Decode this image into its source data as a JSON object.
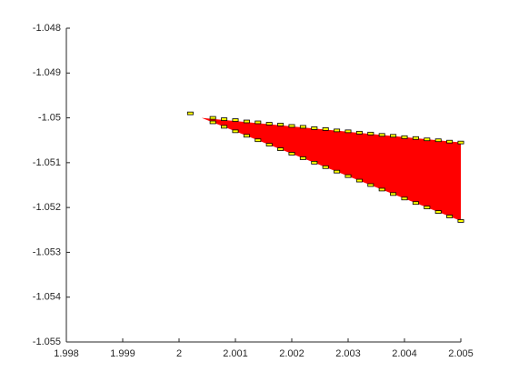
{
  "chart_data": {
    "type": "boxes",
    "xlim": [
      1.998,
      2.005
    ],
    "ylim": [
      -1.055,
      -1.048
    ],
    "xticks": [
      1.998,
      1.999,
      2,
      2.001,
      2.002,
      2.003,
      2.004,
      2.005
    ],
    "yticks": [
      -1.055,
      -1.054,
      -1.053,
      -1.052,
      -1.051,
      -1.05,
      -1.049,
      -1.048
    ],
    "region": {
      "color": "#ff0000",
      "x": [
        2.0004,
        2.005,
        2.005
      ],
      "y": [
        -1.05,
        -1.05055,
        -1.0523
      ]
    },
    "boundary": {
      "color": "#ffff00",
      "box_size": [
        0.0001,
        6e-05
      ],
      "upper": {
        "x": [
          2.0002,
          2.0006,
          2.0008,
          2.001,
          2.0012,
          2.0014,
          2.0016,
          2.0018,
          2.002,
          2.0022,
          2.0024,
          2.0026,
          2.0028,
          2.003,
          2.0032,
          2.0034,
          2.0036,
          2.0038,
          2.004,
          2.0042,
          2.0044,
          2.0046,
          2.0048,
          2.005
        ],
        "y": [
          -1.0499,
          -1.05,
          -1.05003,
          -1.05005,
          -1.05008,
          -1.0501,
          -1.05013,
          -1.05015,
          -1.05018,
          -1.0502,
          -1.05023,
          -1.05025,
          -1.05028,
          -1.0503,
          -1.05033,
          -1.05035,
          -1.05038,
          -1.0504,
          -1.05043,
          -1.05045,
          -1.05048,
          -1.0505,
          -1.05053,
          -1.05055
        ]
      },
      "lower": {
        "x": [
          2.0006,
          2.0008,
          2.001,
          2.0012,
          2.0014,
          2.0016,
          2.0018,
          2.002,
          2.0022,
          2.0024,
          2.0026,
          2.0028,
          2.003,
          2.0032,
          2.0034,
          2.0036,
          2.0038,
          2.004,
          2.0042,
          2.0044,
          2.0046,
          2.0048,
          2.005
        ],
        "y": [
          -1.0501,
          -1.0502,
          -1.0503,
          -1.0504,
          -1.0505,
          -1.0506,
          -1.0507,
          -1.0508,
          -1.0509,
          -1.051,
          -1.0511,
          -1.0512,
          -1.0513,
          -1.0514,
          -1.0515,
          -1.0516,
          -1.0517,
          -1.0518,
          -1.0519,
          -1.052,
          -1.0521,
          -1.0522,
          -1.0523
        ]
      }
    }
  }
}
